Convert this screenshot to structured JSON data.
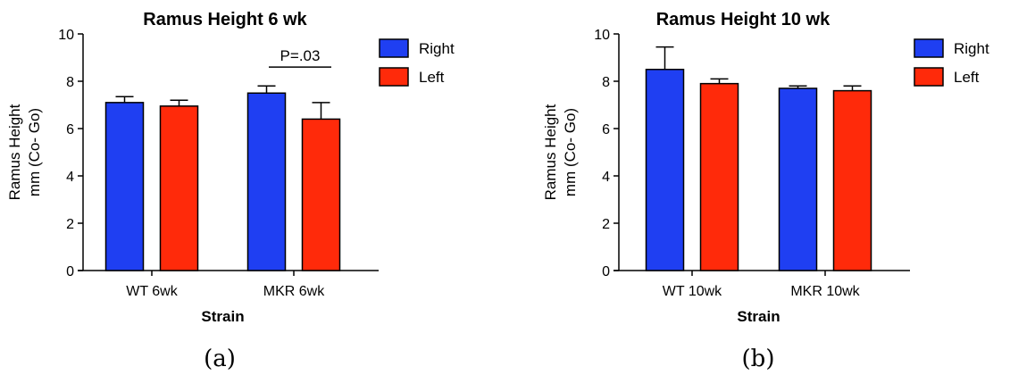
{
  "panel_labels": [
    "(a)",
    "(b)"
  ],
  "colors": {
    "right": "#1f3ff2",
    "left": "#ff2a0a",
    "axis": "#000000"
  },
  "chart_data": [
    {
      "type": "bar",
      "title": "Ramus Height 6 wk",
      "xlabel": "Strain",
      "ylabel": [
        "Ramus Height",
        "mm (Co- Go)"
      ],
      "ylim": [
        0,
        10
      ],
      "yticks": [
        "0",
        "2",
        "4",
        "6",
        "8",
        "10"
      ],
      "categories": [
        "WT  6wk",
        "MKR  6wk"
      ],
      "series": [
        {
          "name": "Right",
          "color": "#1f3ff2",
          "values": [
            7.1,
            7.5
          ],
          "errors": [
            0.25,
            0.3
          ]
        },
        {
          "name": "Left",
          "color": "#ff2a0a",
          "values": [
            6.95,
            6.4
          ],
          "errors": [
            0.25,
            0.7
          ]
        }
      ],
      "legend": "top-right",
      "grid": false,
      "annotation": {
        "text": "P=.03",
        "category_index": 1,
        "y": 8.6
      }
    },
    {
      "type": "bar",
      "title": "Ramus Height 10 wk",
      "xlabel": "Strain",
      "ylabel": [
        "Ramus Height",
        "mm (Co- Go)"
      ],
      "ylim": [
        0,
        10
      ],
      "yticks": [
        "0",
        "2",
        "4",
        "6",
        "8",
        "10"
      ],
      "categories": [
        "WT  10wk",
        "MKR  10wk"
      ],
      "series": [
        {
          "name": "Right",
          "color": "#1f3ff2",
          "values": [
            8.5,
            7.7
          ],
          "errors": [
            0.95,
            0.1
          ]
        },
        {
          "name": "Left",
          "color": "#ff2a0a",
          "values": [
            7.9,
            7.6
          ],
          "errors": [
            0.2,
            0.2
          ]
        }
      ],
      "legend": "top-right",
      "grid": false
    }
  ]
}
